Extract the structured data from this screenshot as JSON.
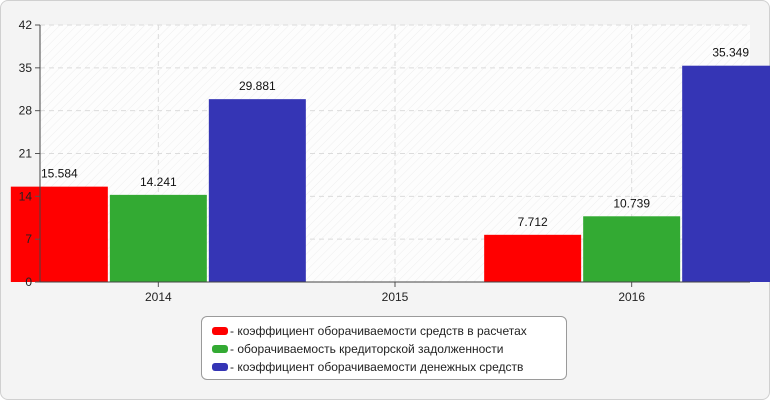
{
  "chart_data": {
    "type": "bar",
    "categories": [
      "2014",
      "2015",
      "2016"
    ],
    "series": [
      {
        "name": "- коэффициент оборачиваемости средств в расчетах",
        "color": "#ff0000",
        "values": [
          15.584,
          null,
          7.712
        ]
      },
      {
        "name": "- оборачиваемость кредиторской задолженности",
        "color": "#33aa33",
        "values": [
          14.241,
          null,
          10.739
        ]
      },
      {
        "name": "- коэффициент оборачиваемости денежных средств",
        "color": "#3535b5",
        "values": [
          29.881,
          null,
          35.349
        ]
      }
    ],
    "data_labels": [
      [
        "15.584",
        "",
        "7.712"
      ],
      [
        "14.241",
        "",
        "10.739"
      ],
      [
        "29.881",
        "",
        "35.349"
      ]
    ],
    "yticks": [
      "0",
      "7",
      "14",
      "21",
      "28",
      "35",
      "42"
    ],
    "ylim": [
      0,
      42
    ],
    "grid": true,
    "legend_position": "bottom-center",
    "title": "",
    "xlabel": "",
    "ylabel": ""
  }
}
